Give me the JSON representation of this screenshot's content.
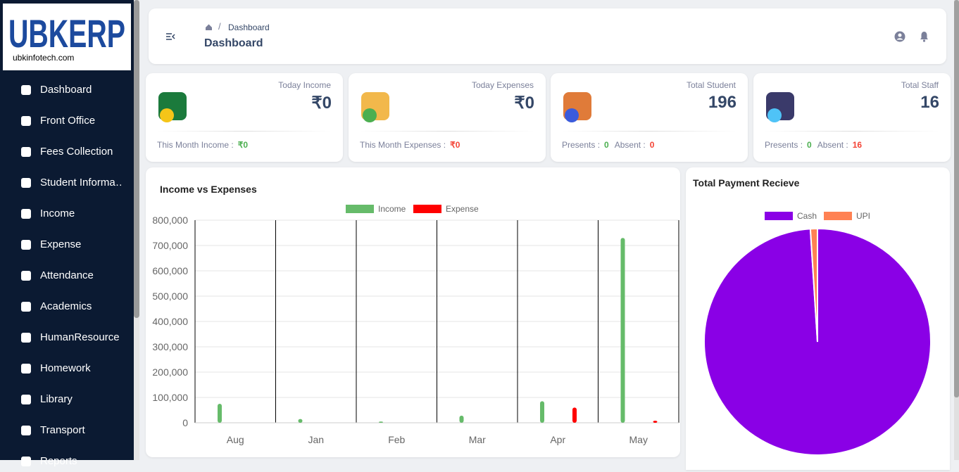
{
  "logo": {
    "brand": "UBKERP",
    "site": "ubkinfotech.com"
  },
  "sidebar": {
    "items": [
      "Dashboard",
      "Front Office",
      "Fees Collection",
      "Student Informa…",
      "Income",
      "Expense",
      "Attendance",
      "Academics",
      "HumanResource",
      "Homework",
      "Library",
      "Transport",
      "Reports"
    ]
  },
  "header": {
    "breadcrumb": "Dashboard",
    "separator": "/",
    "title": "Dashboard"
  },
  "cards": [
    {
      "label": "Today Income",
      "value": "₹0",
      "footer": [
        {
          "label": "This Month Income :",
          "value": "₹0",
          "color": "#4caf50"
        }
      ]
    },
    {
      "label": "Today Expenses",
      "value": "₹0",
      "footer": [
        {
          "label": "This Month Expenses :",
          "value": "₹0",
          "color": "#f44335"
        }
      ]
    },
    {
      "label": "Total Student",
      "value": "196",
      "footer": [
        {
          "label": "Presents :",
          "value": "0",
          "color": "#4caf50"
        },
        {
          "label": "Absent :",
          "value": "0",
          "color": "#f44335"
        }
      ]
    },
    {
      "label": "Total Staff",
      "value": "16",
      "footer": [
        {
          "label": "Presents :",
          "value": "0",
          "color": "#4caf50"
        },
        {
          "label": "Absent :",
          "value": "16",
          "color": "#f44335"
        }
      ]
    }
  ],
  "chart_data": [
    {
      "type": "bar",
      "title": "Income vs Expenses",
      "categories": [
        "Aug",
        "Jan",
        "Feb",
        "Mar",
        "Apr",
        "May"
      ],
      "series": [
        {
          "name": "Income",
          "color": "#66bb6a",
          "values": [
            75000,
            15000,
            5000,
            28000,
            85000,
            730000
          ]
        },
        {
          "name": "Expense",
          "color": "#ff0000",
          "values": [
            0,
            0,
            0,
            0,
            60000,
            8000
          ]
        }
      ],
      "ylim": [
        0,
        800000
      ],
      "yticks": [
        0,
        {
          "value": 100000,
          "label": "100,000"
        },
        {
          "value": 200000,
          "label": "200,000"
        },
        {
          "value": 300000,
          "label": "300,000"
        },
        {
          "value": 400000,
          "label": "400,000"
        },
        {
          "value": 500000,
          "label": "500,000"
        },
        {
          "value": 600000,
          "label": "600,000"
        },
        {
          "value": 700000,
          "label": "700,000"
        },
        {
          "value": 800000,
          "label": "800,000"
        }
      ],
      "grid": true,
      "legend": "top"
    },
    {
      "type": "pie",
      "title": "Total Payment Recieve",
      "categories": [
        "Cash",
        "UPI"
      ],
      "colors": [
        "#8a00e6",
        "#ff8153"
      ],
      "values": [
        99,
        1
      ],
      "legend": "top"
    }
  ]
}
